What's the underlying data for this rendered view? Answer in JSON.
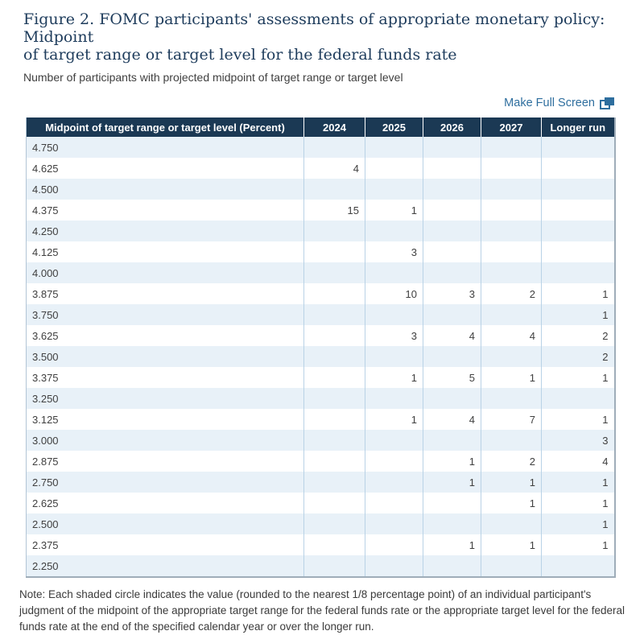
{
  "header": {
    "title_line1": "Figure 2. FOMC participants' assessments of appropriate monetary policy: Midpoint",
    "title_line2": "of target range or target level for the federal funds rate",
    "subtitle": "Number of participants with projected midpoint of target range or target level"
  },
  "toolbar": {
    "fullscreen_label": "Make Full Screen"
  },
  "table": {
    "columns": [
      "Midpoint of target range or target level (Percent)",
      "2024",
      "2025",
      "2026",
      "2027",
      "Longer run"
    ],
    "rows": [
      {
        "label": "4.750",
        "values": [
          "",
          "",
          "",
          "",
          ""
        ]
      },
      {
        "label": "4.625",
        "values": [
          "4",
          "",
          "",
          "",
          ""
        ]
      },
      {
        "label": "4.500",
        "values": [
          "",
          "",
          "",
          "",
          ""
        ]
      },
      {
        "label": "4.375",
        "values": [
          "15",
          "1",
          "",
          "",
          ""
        ]
      },
      {
        "label": "4.250",
        "values": [
          "",
          "",
          "",
          "",
          ""
        ]
      },
      {
        "label": "4.125",
        "values": [
          "",
          "3",
          "",
          "",
          ""
        ]
      },
      {
        "label": "4.000",
        "values": [
          "",
          "",
          "",
          "",
          ""
        ]
      },
      {
        "label": "3.875",
        "values": [
          "",
          "10",
          "3",
          "2",
          "1"
        ]
      },
      {
        "label": "3.750",
        "values": [
          "",
          "",
          "",
          "",
          "1"
        ]
      },
      {
        "label": "3.625",
        "values": [
          "",
          "3",
          "4",
          "4",
          "2"
        ]
      },
      {
        "label": "3.500",
        "values": [
          "",
          "",
          "",
          "",
          "2"
        ]
      },
      {
        "label": "3.375",
        "values": [
          "",
          "1",
          "5",
          "1",
          "1"
        ]
      },
      {
        "label": "3.250",
        "values": [
          "",
          "",
          "",
          "",
          ""
        ]
      },
      {
        "label": "3.125",
        "values": [
          "",
          "1",
          "4",
          "7",
          "1"
        ]
      },
      {
        "label": "3.000",
        "values": [
          "",
          "",
          "",
          "",
          "3"
        ]
      },
      {
        "label": "2.875",
        "values": [
          "",
          "",
          "1",
          "2",
          "4"
        ]
      },
      {
        "label": "2.750",
        "values": [
          "",
          "",
          "1",
          "1",
          "1"
        ]
      },
      {
        "label": "2.625",
        "values": [
          "",
          "",
          "",
          "1",
          "1"
        ]
      },
      {
        "label": "2.500",
        "values": [
          "",
          "",
          "",
          "",
          "1"
        ]
      },
      {
        "label": "2.375",
        "values": [
          "",
          "",
          "1",
          "1",
          "1"
        ]
      },
      {
        "label": "2.250",
        "values": [
          "",
          "",
          "",
          "",
          ""
        ]
      }
    ]
  },
  "note": {
    "text": "Note: Each shaded circle indicates the value (rounded to the nearest 1/8 percentage point) of an individual participant's judgment of the midpoint of the appropriate target range for the federal funds rate or the appropriate target level for the federal funds rate at the end of the specified calendar year or over the longer run."
  },
  "colors": {
    "title_navy": "#1e3c5c",
    "header_background": "#1b3954",
    "header_text": "#ffffff",
    "shaded_row": "#e8f1f8",
    "cell_border": "#b9d2e6",
    "link_blue": "#2e6e9e",
    "body_text": "#404040"
  }
}
